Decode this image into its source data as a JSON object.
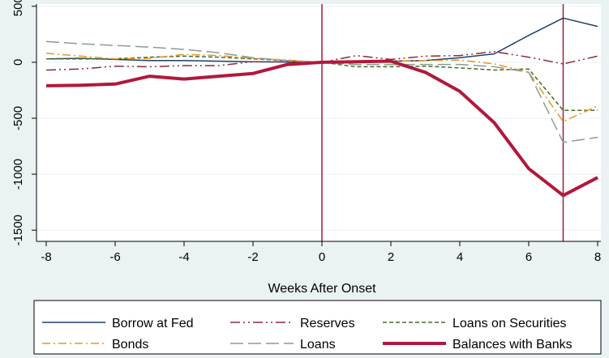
{
  "chart_data": {
    "type": "line",
    "title": "",
    "xlabel": "Weeks After Onset",
    "ylabel": "",
    "xlim": [
      -8,
      8
    ],
    "ylim": [
      -1600,
      520
    ],
    "x_ticks": [
      "-8",
      "-6",
      "-4",
      "-2",
      "0",
      "2",
      "4",
      "6",
      "8"
    ],
    "y_ticks": [
      "-1500",
      "-1000",
      "-500",
      "0",
      "500"
    ],
    "reference_lines_x": [
      0,
      7
    ],
    "reference_line_color": "#a01e3a",
    "x": [
      -8,
      -7,
      -6,
      -5,
      -4,
      -3,
      -2,
      -1,
      0,
      1,
      2,
      3,
      4,
      5,
      6,
      7,
      8
    ],
    "series": [
      {
        "name": "Borrow at Fed",
        "color": "#1f3f6b",
        "dash": "",
        "width": 1.5,
        "values": [
          30,
          35,
          25,
          15,
          15,
          10,
          5,
          2,
          0,
          5,
          10,
          15,
          40,
          75,
          240,
          395,
          320
        ]
      },
      {
        "name": "Reserves",
        "color": "#8b2a3a",
        "dash": "12,4,2,4,2,4",
        "width": 1.5,
        "values": [
          -70,
          -60,
          -35,
          -40,
          -30,
          -30,
          5,
          5,
          0,
          60,
          25,
          55,
          60,
          95,
          45,
          -15,
          55
        ]
      },
      {
        "name": "Loans on Securities",
        "color": "#4a6b23",
        "dash": "5,3",
        "width": 1.5,
        "values": [
          30,
          30,
          30,
          45,
          55,
          45,
          30,
          15,
          0,
          -40,
          -40,
          -35,
          -50,
          -70,
          -60,
          -430,
          -430
        ]
      },
      {
        "name": "Bonds",
        "color": "#e8961e",
        "dash": "10,4,2,4",
        "width": 1.5,
        "values": [
          80,
          55,
          30,
          35,
          70,
          60,
          35,
          20,
          0,
          5,
          10,
          15,
          20,
          -15,
          -90,
          -530,
          -390
        ]
      },
      {
        "name": "Loans",
        "color": "#8a9c98",
        "dash": "16,6",
        "width": 1.5,
        "values": [
          185,
          165,
          150,
          135,
          115,
          85,
          40,
          15,
          0,
          -20,
          -20,
          -20,
          -20,
          -40,
          -90,
          -715,
          -670
        ]
      },
      {
        "name": "Balances with Banks",
        "color": "#b2183c",
        "dash": "",
        "width": 4,
        "values": [
          -210,
          -205,
          -195,
          -125,
          -150,
          -125,
          -100,
          -20,
          0,
          5,
          10,
          -90,
          -260,
          -540,
          -950,
          -1190,
          -1030
        ]
      }
    ],
    "grid": true,
    "legend_placement": "bottom"
  }
}
